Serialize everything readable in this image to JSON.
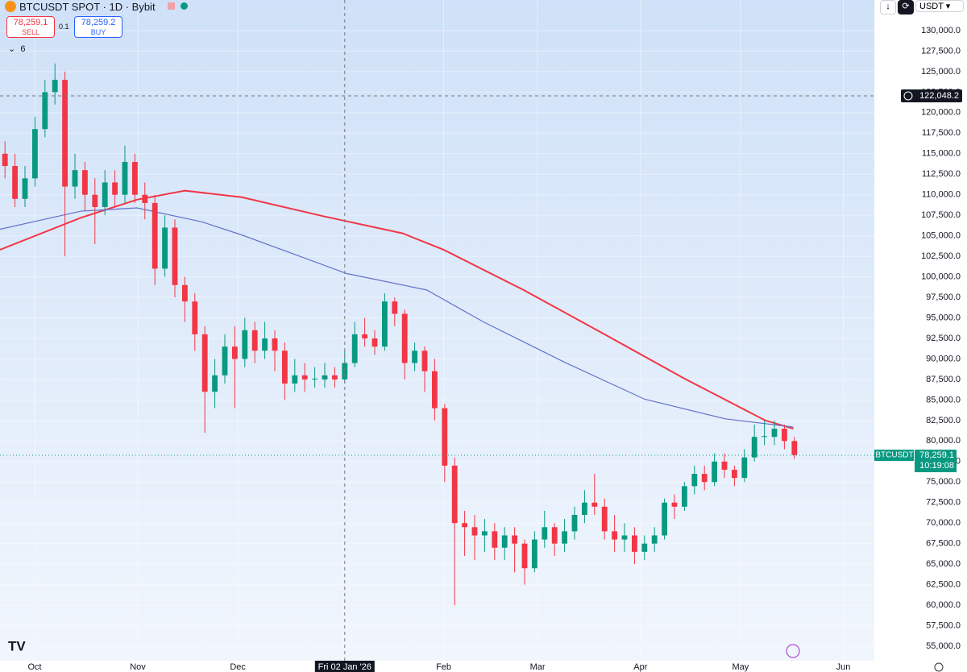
{
  "header": {
    "symbol": "BTCUSDT SPOT · 1D · Bybit",
    "sell_price": "78,259.1",
    "sell": "SELL",
    "spread": "0.1",
    "buy_price": "78,259.2",
    "buy": "BUY",
    "indicators_count": "6",
    "currency": "USDT"
  },
  "chart_data": {
    "type": "candlestick",
    "open": [
      115000,
      113500,
      109500,
      112000,
      118000,
      122500,
      124000,
      111000,
      113000,
      110000,
      108500,
      111500,
      110000,
      114000,
      110000,
      109000,
      101000,
      106000,
      99000,
      97000,
      93000,
      86000,
      88000,
      91500,
      90000,
      93500,
      91000,
      92500,
      91000,
      87000,
      88000,
      87500,
      87500,
      88000,
      87500,
      89500,
      93000,
      92500,
      91500,
      97000,
      95500,
      89500,
      91000,
      88500,
      84000,
      77000,
      70000,
      69500,
      68500,
      69000,
      67000,
      68500,
      67500,
      64500,
      68000,
      69500,
      67500,
      69000,
      71000,
      72500,
      72000,
      69000,
      68000,
      68500,
      66500,
      67500,
      68500,
      72500,
      72000,
      74500,
      76000,
      75000,
      77500,
      76500,
      75500,
      78000,
      80500,
      80500,
      81500,
      80000
    ],
    "high": [
      116500,
      115000,
      113500,
      119500,
      124000,
      126000,
      125000,
      115000,
      114000,
      112000,
      113000,
      113000,
      116000,
      115000,
      111500,
      110000,
      107500,
      107000,
      100000,
      98000,
      94000,
      90000,
      93000,
      94000,
      95000,
      94500,
      94500,
      93500,
      92000,
      90000,
      89500,
      89000,
      89500,
      89000,
      91000,
      94500,
      95000,
      93500,
      98000,
      97500,
      96000,
      92000,
      91500,
      90000,
      84500,
      78000,
      71500,
      71000,
      70500,
      70000,
      69500,
      69500,
      68000,
      69000,
      71500,
      70000,
      70500,
      72000,
      74000,
      76000,
      73000,
      71000,
      70000,
      69500,
      68500,
      69500,
      73000,
      73500,
      75000,
      77000,
      77000,
      78500,
      78500,
      77000,
      79000,
      82000,
      82500,
      82500,
      82000,
      80500
    ],
    "low": [
      112000,
      108500,
      108500,
      111000,
      117000,
      121000,
      102500,
      109500,
      108000,
      104000,
      107500,
      108500,
      109000,
      109000,
      107000,
      99000,
      100000,
      97500,
      94500,
      91000,
      81000,
      84000,
      87000,
      84000,
      89000,
      89500,
      90000,
      88500,
      85000,
      86000,
      86000,
      86500,
      86500,
      86500,
      87000,
      89000,
      91500,
      90500,
      91000,
      94000,
      87500,
      88500,
      86000,
      82500,
      75000,
      60000,
      66000,
      65500,
      66500,
      65500,
      65500,
      64000,
      62500,
      64000,
      67000,
      66000,
      66500,
      68000,
      70000,
      71000,
      68000,
      66500,
      66500,
      65000,
      65500,
      66500,
      68000,
      70500,
      71500,
      73500,
      74000,
      74500,
      75500,
      74500,
      75000,
      77500,
      79500,
      79500,
      79000,
      77800
    ],
    "close": [
      113500,
      109500,
      112000,
      118000,
      122500,
      124000,
      111000,
      113000,
      110000,
      108500,
      111500,
      110000,
      114000,
      110000,
      109000,
      101000,
      106000,
      99000,
      97000,
      93000,
      86000,
      88000,
      91500,
      90000,
      93500,
      91000,
      92500,
      91000,
      87000,
      88000,
      87500,
      87600,
      88000,
      87500,
      89500,
      93000,
      92500,
      91500,
      97000,
      95500,
      89500,
      91000,
      88500,
      84000,
      77000,
      70000,
      69500,
      68500,
      69000,
      67000,
      68500,
      67500,
      64500,
      68000,
      69500,
      67500,
      69000,
      71000,
      72500,
      72000,
      69000,
      68000,
      68500,
      66500,
      67500,
      68500,
      72500,
      72000,
      74500,
      76000,
      75000,
      77500,
      76500,
      75500,
      78000,
      80500,
      80600,
      81500,
      80000,
      78300
    ],
    "up_color": "#089981",
    "down_color": "#f23645",
    "series": [
      {
        "color": "#f23645",
        "x": [
          -0.5,
          7.6,
          13.2,
          18,
          23.7,
          31.8,
          39.8,
          43.9,
          51.9,
          60,
          68,
          76.1,
          78.9
        ],
        "values": [
          103300,
          107200,
          109400,
          110500,
          109700,
          107400,
          105300,
          103300,
          98400,
          93000,
          87600,
          82500,
          81500
        ]
      },
      {
        "color": "#6272c9",
        "x": [
          -0.5,
          7.6,
          13.2,
          19.7,
          23.7,
          34.2,
          42.2,
          47.9,
          56,
          64,
          72.1,
          78.9
        ],
        "values": [
          105800,
          108000,
          108400,
          106700,
          105100,
          100400,
          98400,
          94500,
          89600,
          85100,
          82700,
          81700
        ]
      }
    ],
    "xlim": [
      -0.5,
      87
    ],
    "xticks": [
      {
        "value": 2.97,
        "label": "Oct"
      },
      {
        "value": 13.29,
        "label": "Nov"
      },
      {
        "value": 23.3,
        "label": "Dec"
      },
      {
        "value": 43.9,
        "label": "Feb"
      },
      {
        "value": 53.3,
        "label": "Mar"
      },
      {
        "value": 63.6,
        "label": "Apr"
      },
      {
        "value": 73.6,
        "label": "May"
      },
      {
        "value": 83.9,
        "label": "Jun"
      }
    ],
    "ylim": [
      53233,
      133727
    ],
    "yticks": [
      {
        "value": 55000,
        "label": "55,000.0"
      },
      {
        "value": 57500,
        "label": "57,500.0"
      },
      {
        "value": 60000,
        "label": "60,000.0"
      },
      {
        "value": 62500,
        "label": "62,500.0"
      },
      {
        "value": 65000,
        "label": "65,000.0"
      },
      {
        "value": 67500,
        "label": "67,500.0"
      },
      {
        "value": 70000,
        "label": "70,000.0"
      },
      {
        "value": 72500,
        "label": "72,500.0"
      },
      {
        "value": 75000,
        "label": "75,000.0"
      },
      {
        "value": 77500,
        "label": "77,500.0"
      },
      {
        "value": 80000,
        "label": "80,000.0"
      },
      {
        "value": 82500,
        "label": "82,500.0"
      },
      {
        "value": 85000,
        "label": "85,000.0"
      },
      {
        "value": 87500,
        "label": "87,500.0"
      },
      {
        "value": 90000,
        "label": "90,000.0"
      },
      {
        "value": 92500,
        "label": "92,500.0"
      },
      {
        "value": 95000,
        "label": "95,000.0"
      },
      {
        "value": 97500,
        "label": "97,500.0"
      },
      {
        "value": 100000,
        "label": "100,000.0"
      },
      {
        "value": 102500,
        "label": "102,500.0"
      },
      {
        "value": 105000,
        "label": "105,000.0"
      },
      {
        "value": 107500,
        "label": "107,500.0"
      },
      {
        "value": 110000,
        "label": "110,000.0"
      },
      {
        "value": 112500,
        "label": "112,500.0"
      },
      {
        "value": 115000,
        "label": "115,000.0"
      },
      {
        "value": 117500,
        "label": "117,500.0"
      },
      {
        "value": 120000,
        "label": "120,000.0"
      },
      {
        "value": 122500,
        "label": "122,500.0"
      },
      {
        "value": 125000,
        "label": "125,000.0"
      },
      {
        "value": 127500,
        "label": "127,500.0"
      },
      {
        "value": 130000,
        "label": "130,000.0"
      }
    ],
    "grid": true,
    "crosshair": {
      "x": {
        "value": 34,
        "label": "Fri 02 Jan '26"
      },
      "y": {
        "value": 122048.2,
        "label": "122,048.2"
      }
    },
    "last_price": {
      "value": 78259.1,
      "label": "78,259.1",
      "symbol": "BTCUSDT",
      "countdown": "10:19:08",
      "color": "#089981"
    }
  }
}
